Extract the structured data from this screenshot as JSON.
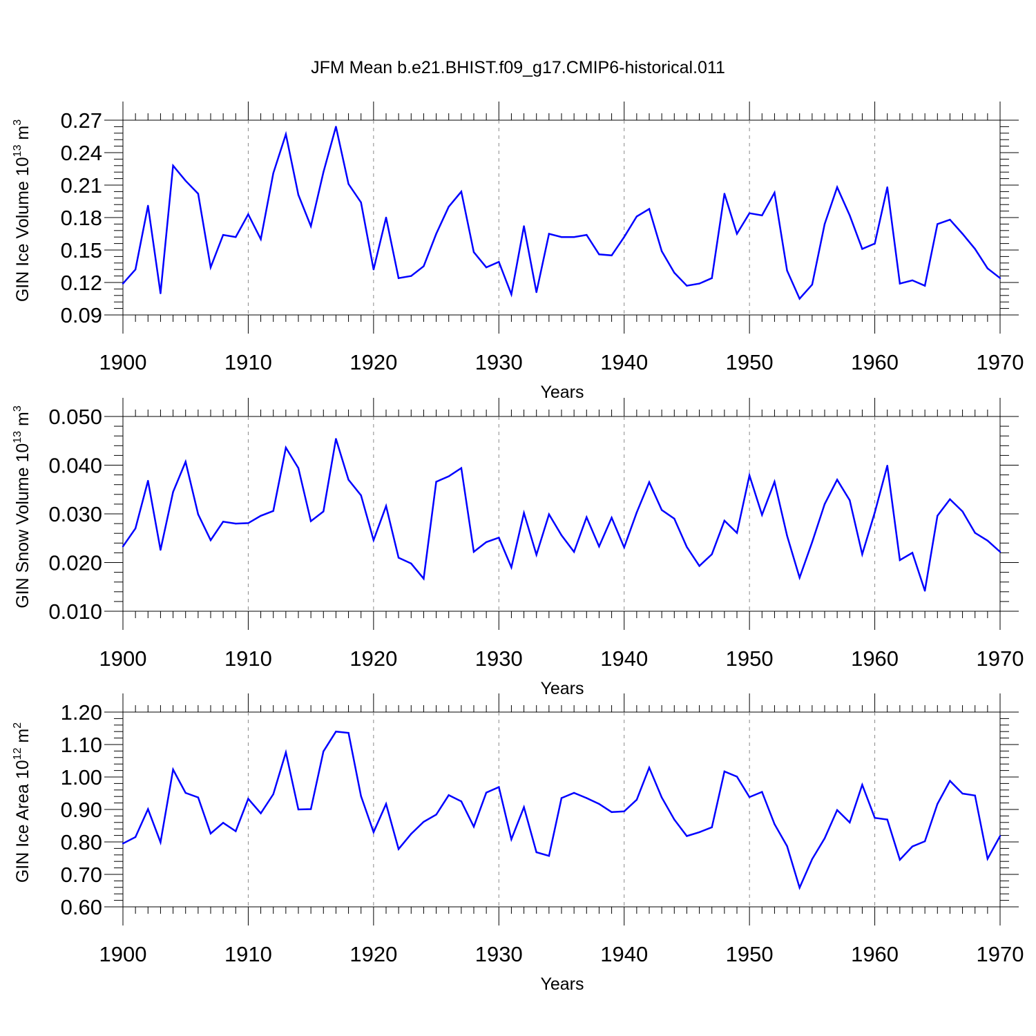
{
  "title": "JFM Mean b.e21.BHIST.f09_g17.CMIP6-historical.011",
  "colors": {
    "series": "#0000ff",
    "axis": "#000000",
    "grid": "#888888"
  },
  "chart_data": [
    {
      "type": "line",
      "name": "ice-volume",
      "ylabel_prefix": "GIN Ice Volume 10",
      "ylabel_exp": "13",
      "ylabel_unit": " m",
      "ylabel_unit_exp": "3",
      "xlabel": "Years",
      "xlim": [
        1900,
        1970
      ],
      "ylim": [
        0.09,
        0.27
      ],
      "yticks": [
        0.09,
        0.12,
        0.15,
        0.18,
        0.21,
        0.24,
        0.27
      ],
      "ytick_labels": [
        "0.09",
        "0.12",
        "0.15",
        "0.18",
        "0.21",
        "0.24",
        "0.27"
      ],
      "xticks": [
        1900,
        1910,
        1920,
        1930,
        1940,
        1950,
        1960,
        1970
      ],
      "xtick_labels": [
        "1900",
        "1910",
        "1920",
        "1930",
        "1940",
        "1950",
        "1960",
        "1970"
      ],
      "grid": "vertical dashed at decades",
      "x": [
        1900,
        1901,
        1902,
        1903,
        1904,
        1905,
        1906,
        1907,
        1908,
        1909,
        1910,
        1911,
        1912,
        1913,
        1914,
        1915,
        1916,
        1917,
        1918,
        1919,
        1920,
        1921,
        1922,
        1923,
        1924,
        1925,
        1926,
        1927,
        1928,
        1929,
        1930,
        1931,
        1932,
        1933,
        1934,
        1935,
        1936,
        1937,
        1938,
        1939,
        1940,
        1941,
        1942,
        1943,
        1944,
        1945,
        1946,
        1947,
        1948,
        1949,
        1950,
        1951,
        1952,
        1953,
        1954,
        1955,
        1956,
        1957,
        1958,
        1959,
        1960,
        1961,
        1962,
        1963,
        1964,
        1965,
        1966,
        1967,
        1968,
        1969,
        1970
      ],
      "values": [
        0.119,
        0.132,
        0.191,
        0.11,
        0.228,
        0.214,
        0.202,
        0.134,
        0.164,
        0.162,
        0.183,
        0.16,
        0.221,
        0.257,
        0.201,
        0.172,
        0.222,
        0.264,
        0.211,
        0.194,
        0.132,
        0.18,
        0.124,
        0.126,
        0.135,
        0.165,
        0.19,
        0.204,
        0.148,
        0.134,
        0.139,
        0.109,
        0.172,
        0.111,
        0.165,
        0.162,
        0.162,
        0.164,
        0.146,
        0.145,
        0.162,
        0.181,
        0.188,
        0.149,
        0.129,
        0.117,
        0.119,
        0.124,
        0.202,
        0.165,
        0.184,
        0.182,
        0.203,
        0.131,
        0.105,
        0.118,
        0.174,
        0.208,
        0.182,
        0.151,
        0.156,
        0.208,
        0.119,
        0.122,
        0.117,
        0.174,
        0.178,
        0.165,
        0.151,
        0.133,
        0.124
      ]
    },
    {
      "type": "line",
      "name": "snow-volume",
      "ylabel_prefix": "GIN Snow Volume 10",
      "ylabel_exp": "13",
      "ylabel_unit": " m",
      "ylabel_unit_exp": "3",
      "xlabel": "Years",
      "xlim": [
        1900,
        1970
      ],
      "ylim": [
        0.01,
        0.05
      ],
      "yticks": [
        0.01,
        0.02,
        0.03,
        0.04,
        0.05
      ],
      "ytick_labels": [
        "0.010",
        "0.020",
        "0.030",
        "0.040",
        "0.050"
      ],
      "xticks": [
        1900,
        1910,
        1920,
        1930,
        1940,
        1950,
        1960,
        1970
      ],
      "xtick_labels": [
        "1900",
        "1910",
        "1920",
        "1930",
        "1940",
        "1950",
        "1960",
        "1970"
      ],
      "grid": "vertical dashed at decades",
      "x": [
        1900,
        1901,
        1902,
        1903,
        1904,
        1905,
        1906,
        1907,
        1908,
        1909,
        1910,
        1911,
        1912,
        1913,
        1914,
        1915,
        1916,
        1917,
        1918,
        1919,
        1920,
        1921,
        1922,
        1923,
        1924,
        1925,
        1926,
        1927,
        1928,
        1929,
        1930,
        1931,
        1932,
        1933,
        1934,
        1935,
        1936,
        1937,
        1938,
        1939,
        1940,
        1941,
        1942,
        1943,
        1944,
        1945,
        1946,
        1947,
        1948,
        1949,
        1950,
        1951,
        1952,
        1953,
        1954,
        1955,
        1956,
        1957,
        1958,
        1959,
        1960,
        1961,
        1962,
        1963,
        1964,
        1965,
        1966,
        1967,
        1968,
        1969,
        1970
      ],
      "values": [
        0.0233,
        0.027,
        0.0368,
        0.0226,
        0.0345,
        0.0407,
        0.0299,
        0.0246,
        0.0284,
        0.028,
        0.0281,
        0.0296,
        0.0306,
        0.0436,
        0.0394,
        0.0285,
        0.0305,
        0.0454,
        0.037,
        0.0338,
        0.0246,
        0.0316,
        0.021,
        0.0198,
        0.0167,
        0.0366,
        0.0377,
        0.0394,
        0.0222,
        0.0242,
        0.0251,
        0.019,
        0.0302,
        0.0216,
        0.0299,
        0.0256,
        0.0222,
        0.0293,
        0.0233,
        0.0292,
        0.0231,
        0.0303,
        0.0365,
        0.0308,
        0.029,
        0.0232,
        0.0193,
        0.0217,
        0.0286,
        0.0261,
        0.0379,
        0.0298,
        0.0366,
        0.0255,
        0.0169,
        0.0242,
        0.032,
        0.037,
        0.0328,
        0.0217,
        0.0303,
        0.0399,
        0.0205,
        0.022,
        0.0142,
        0.0296,
        0.033,
        0.0305,
        0.0261,
        0.0245,
        0.0222
      ]
    },
    {
      "type": "line",
      "name": "ice-area",
      "ylabel_prefix": "GIN Ice Area 10",
      "ylabel_exp": "12",
      "ylabel_unit": " m",
      "ylabel_unit_exp": "2",
      "xlabel": "Years",
      "xlim": [
        1900,
        1970
      ],
      "ylim": [
        0.6,
        1.2
      ],
      "yticks": [
        0.6,
        0.7,
        0.8,
        0.9,
        1.0,
        1.1,
        1.2
      ],
      "ytick_labels": [
        "0.60",
        "0.70",
        "0.80",
        "0.90",
        "1.00",
        "1.10",
        "1.20"
      ],
      "xticks": [
        1900,
        1910,
        1920,
        1930,
        1940,
        1950,
        1960,
        1970
      ],
      "xtick_labels": [
        "1900",
        "1910",
        "1920",
        "1930",
        "1940",
        "1950",
        "1960",
        "1970"
      ],
      "grid": "vertical dashed at decades",
      "x": [
        1900,
        1901,
        1902,
        1903,
        1904,
        1905,
        1906,
        1907,
        1908,
        1909,
        1910,
        1911,
        1912,
        1913,
        1914,
        1915,
        1916,
        1917,
        1918,
        1919,
        1920,
        1921,
        1922,
        1923,
        1924,
        1925,
        1926,
        1927,
        1928,
        1929,
        1930,
        1931,
        1932,
        1933,
        1934,
        1935,
        1936,
        1937,
        1938,
        1939,
        1940,
        1941,
        1942,
        1943,
        1944,
        1945,
        1946,
        1947,
        1948,
        1949,
        1950,
        1951,
        1952,
        1953,
        1954,
        1955,
        1956,
        1957,
        1958,
        1959,
        1960,
        1961,
        1962,
        1963,
        1964,
        1965,
        1966,
        1967,
        1968,
        1969,
        1970
      ],
      "values": [
        0.795,
        0.815,
        0.901,
        0.799,
        1.023,
        0.951,
        0.937,
        0.826,
        0.859,
        0.833,
        0.933,
        0.888,
        0.947,
        1.076,
        0.9,
        0.901,
        1.079,
        1.14,
        1.136,
        0.941,
        0.83,
        0.917,
        0.778,
        0.825,
        0.862,
        0.884,
        0.944,
        0.925,
        0.847,
        0.952,
        0.969,
        0.808,
        0.907,
        0.768,
        0.757,
        0.935,
        0.951,
        0.935,
        0.917,
        0.892,
        0.894,
        0.93,
        1.029,
        0.937,
        0.869,
        0.818,
        0.83,
        0.845,
        1.017,
        1.001,
        0.938,
        0.954,
        0.855,
        0.787,
        0.659,
        0.747,
        0.811,
        0.898,
        0.86,
        0.976,
        0.874,
        0.869,
        0.745,
        0.786,
        0.802,
        0.917,
        0.988,
        0.949,
        0.943,
        0.748,
        0.818
      ]
    }
  ]
}
